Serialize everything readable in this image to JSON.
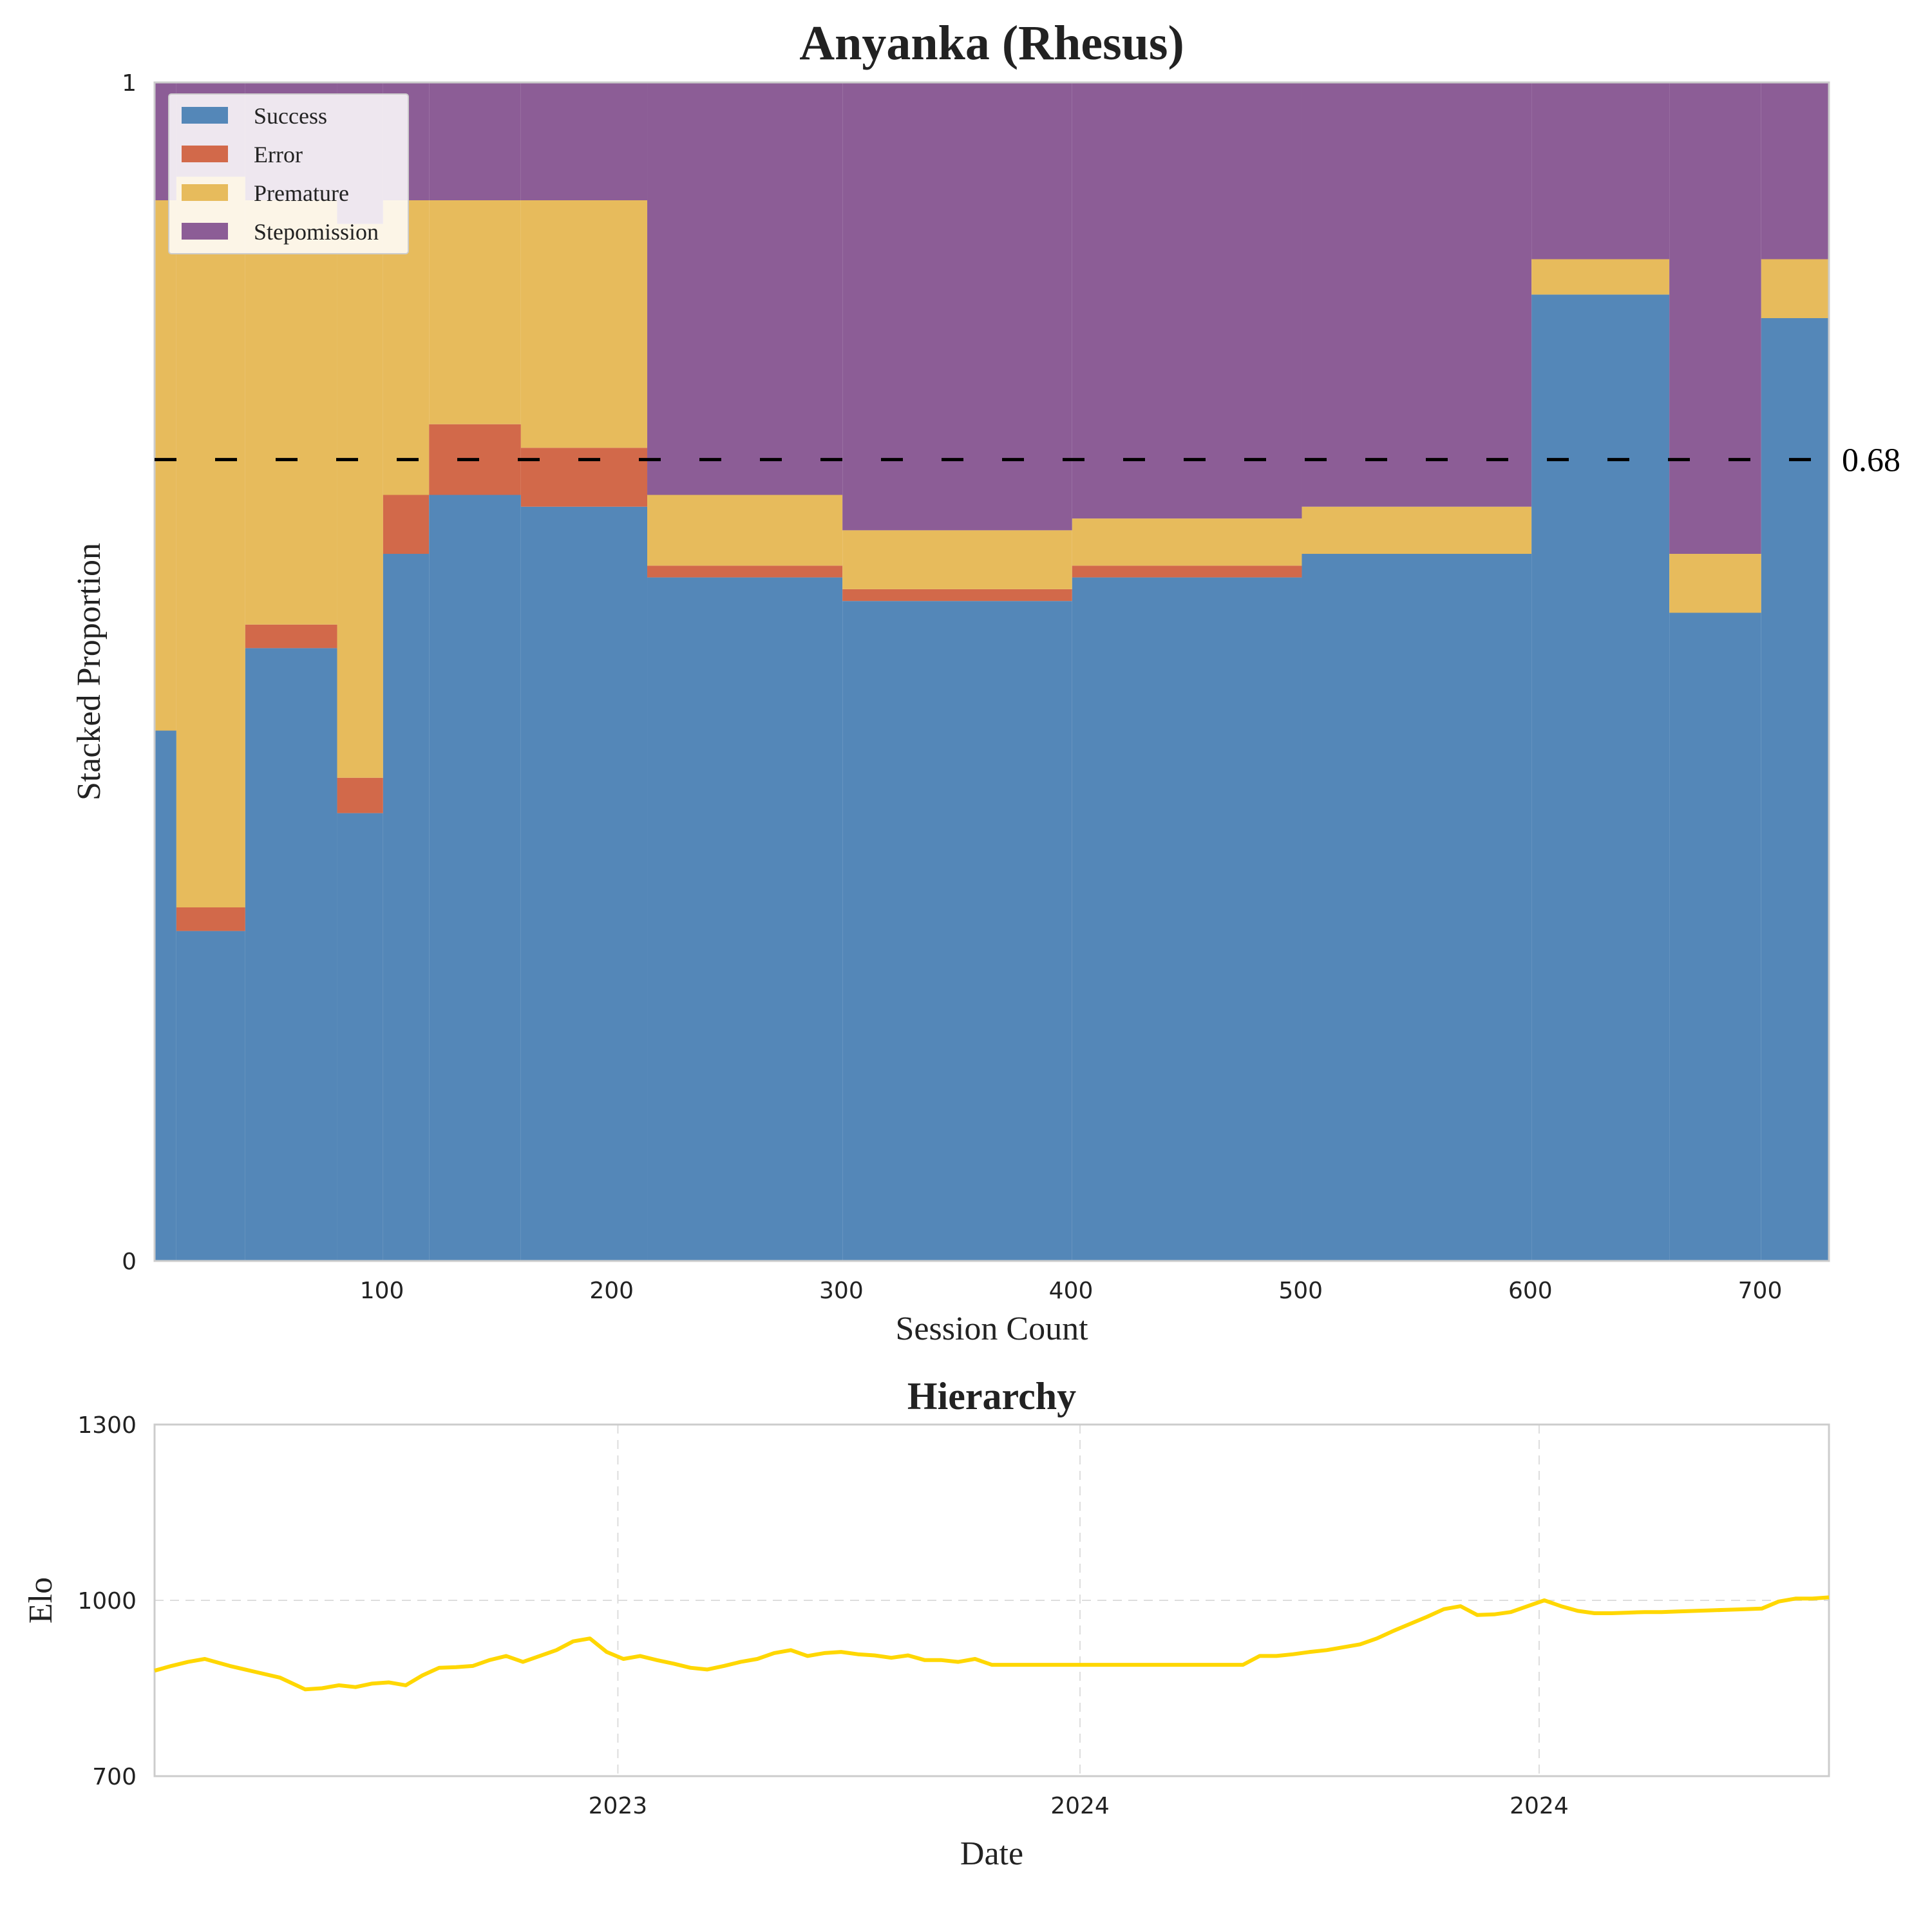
{
  "figure": {
    "colors": {
      "success": "#5487b8",
      "error": "#d2694a",
      "premature": "#e7bb5c",
      "stepomission": "#8c5d96",
      "reference_line": "#000000",
      "elo_line": "#ffd700",
      "frame": "#cccccc",
      "grid": "#dddddd",
      "text": "#222222"
    }
  },
  "chart_data": [
    {
      "type": "area",
      "stacked": true,
      "title": "Anyanka (Rhesus)",
      "xlabel": "Session Count",
      "ylabel": "Stacked Proportion",
      "xlim": [
        1,
        730
      ],
      "ylim": [
        0,
        1
      ],
      "xticks": [
        100,
        200,
        300,
        400,
        500,
        600,
        700
      ],
      "yticks": [
        {
          "value": 0,
          "label": "0"
        },
        {
          "value": 1,
          "label": "1"
        }
      ],
      "grid": false,
      "legend": {
        "position": "top-left",
        "entries": [
          {
            "key": "success",
            "label": "Success"
          },
          {
            "key": "error",
            "label": "Error"
          },
          {
            "key": "premature",
            "label": "Premature"
          },
          {
            "key": "stepomission",
            "label": "Stepomission"
          }
        ]
      },
      "reference_line": {
        "value": 0.68,
        "label": "0.68",
        "style": "dashed"
      },
      "segments": [
        {
          "from": 1,
          "to": 10,
          "success": 0.45,
          "error": 0.0,
          "premature": 0.45,
          "stepomission": 0.1
        },
        {
          "from": 11,
          "to": 40,
          "success": 0.28,
          "error": 0.02,
          "premature": 0.62,
          "stepomission": 0.08
        },
        {
          "from": 41,
          "to": 80,
          "success": 0.52,
          "error": 0.02,
          "premature": 0.36,
          "stepomission": 0.1
        },
        {
          "from": 81,
          "to": 100,
          "success": 0.38,
          "error": 0.03,
          "premature": 0.47,
          "stepomission": 0.12
        },
        {
          "from": 101,
          "to": 120,
          "success": 0.6,
          "error": 0.05,
          "premature": 0.25,
          "stepomission": 0.1
        },
        {
          "from": 121,
          "to": 160,
          "success": 0.65,
          "error": 0.06,
          "premature": 0.19,
          "stepomission": 0.1
        },
        {
          "from": 161,
          "to": 215,
          "success": 0.64,
          "error": 0.05,
          "premature": 0.21,
          "stepomission": 0.1
        },
        {
          "from": 216,
          "to": 300,
          "success": 0.58,
          "error": 0.01,
          "premature": 0.06,
          "stepomission": 0.35
        },
        {
          "from": 301,
          "to": 400,
          "success": 0.56,
          "error": 0.01,
          "premature": 0.05,
          "stepomission": 0.38
        },
        {
          "from": 401,
          "to": 500,
          "success": 0.58,
          "error": 0.01,
          "premature": 0.04,
          "stepomission": 0.37
        },
        {
          "from": 501,
          "to": 600,
          "success": 0.6,
          "error": 0.0,
          "premature": 0.04,
          "stepomission": 0.36
        },
        {
          "from": 601,
          "to": 660,
          "success": 0.82,
          "error": 0.0,
          "premature": 0.03,
          "stepomission": 0.15
        },
        {
          "from": 661,
          "to": 700,
          "success": 0.55,
          "error": 0.0,
          "premature": 0.05,
          "stepomission": 0.4
        },
        {
          "from": 701,
          "to": 730,
          "success": 0.8,
          "error": 0.0,
          "premature": 0.05,
          "stepomission": 0.15
        }
      ]
    },
    {
      "type": "line",
      "title": "Hierarchy",
      "xlabel": "Date",
      "ylabel": "Elo",
      "ylim": [
        700,
        1300
      ],
      "yticks": [
        700,
        1000,
        1300
      ],
      "xlim": [
        0,
        1
      ],
      "xticks": [
        {
          "value": 0.2767,
          "label": "2023"
        },
        {
          "value": 0.5527,
          "label": "2024"
        },
        {
          "value": 0.8269,
          "label": "2024"
        }
      ],
      "grid": true,
      "series": [
        {
          "color": "#ffd700",
          "x": [
            0.0,
            0.01,
            0.02,
            0.03,
            0.045,
            0.06,
            0.075,
            0.09,
            0.1,
            0.11,
            0.12,
            0.13,
            0.14,
            0.15,
            0.16,
            0.17,
            0.18,
            0.19,
            0.2,
            0.21,
            0.22,
            0.23,
            0.24,
            0.25,
            0.26,
            0.27,
            0.28,
            0.29,
            0.3,
            0.31,
            0.32,
            0.33,
            0.34,
            0.35,
            0.36,
            0.37,
            0.38,
            0.39,
            0.4,
            0.41,
            0.42,
            0.43,
            0.44,
            0.45,
            0.46,
            0.47,
            0.48,
            0.49,
            0.5,
            0.55,
            0.6,
            0.65,
            0.66,
            0.67,
            0.68,
            0.69,
            0.7,
            0.71,
            0.72,
            0.73,
            0.74,
            0.75,
            0.76,
            0.77,
            0.78,
            0.79,
            0.8,
            0.81,
            0.82,
            0.83,
            0.84,
            0.85,
            0.86,
            0.87,
            0.88,
            0.89,
            0.9,
            0.91,
            0.92,
            0.93,
            0.94,
            0.95,
            0.96,
            0.97,
            0.98,
            0.99,
            1.0
          ],
          "y": [
            880,
            888,
            895,
            900,
            888,
            878,
            868,
            848,
            850,
            855,
            852,
            858,
            860,
            855,
            872,
            885,
            886,
            888,
            898,
            905,
            895,
            905,
            915,
            930,
            935,
            912,
            900,
            905,
            898,
            892,
            885,
            882,
            888,
            895,
            900,
            910,
            915,
            905,
            910,
            912,
            908,
            906,
            902,
            906,
            898,
            898,
            895,
            900,
            890,
            890,
            890,
            890,
            905,
            905,
            908,
            912,
            915,
            920,
            925,
            935,
            948,
            960,
            972,
            985,
            990,
            975,
            976,
            980,
            990,
            1000,
            990,
            982,
            978,
            978,
            979,
            980,
            980,
            981,
            982,
            983,
            984,
            985,
            986,
            998,
            1003,
            1003,
            1005
          ]
        }
      ]
    }
  ]
}
